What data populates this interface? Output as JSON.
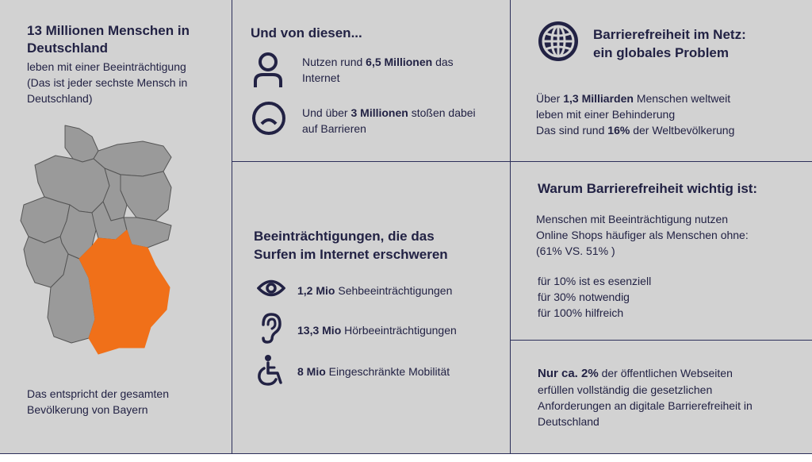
{
  "col1": {
    "heading_line1": "13 Millionen Menschen in",
    "heading_line2": "Deutschland",
    "sub_line1": "leben mit einer Beeinträchtigung",
    "sub_line2": "(Das ist jeder sechste Mensch in",
    "sub_line3": "Deutschland)",
    "footer_line1": "Das entspricht der gesamten",
    "footer_line2": "Bevölkerung von Bayern",
    "map_highlight_color": "#f07019",
    "map_color": "#9a9a9a"
  },
  "col2_top": {
    "heading": "Und von diesen...",
    "item1_pre": "Nutzen rund ",
    "item1_bold": "6,5 Millionen",
    "item1_post": " das",
    "item1_line2": "Internet",
    "item2_pre": "Und über ",
    "item2_bold": "3 Millionen",
    "item2_post": " stoßen dabei",
    "item2_line2": "auf Barrieren"
  },
  "col2_bottom": {
    "heading_line1": "Beeinträchtigungen, die das",
    "heading_line2": "Surfen im Internet erschweren",
    "items": [
      {
        "bold": "1,2 Mio",
        "label": " Sehbeeinträchtigungen",
        "icon": "eye-icon"
      },
      {
        "bold": "13,3 Mio",
        "label": " Hörbeeinträchtigungen",
        "icon": "ear-icon"
      },
      {
        "bold": "8 Mio",
        "label": " Eingeschränkte Mobilität",
        "icon": "wheelchair-icon"
      }
    ]
  },
  "col3_top": {
    "heading_line1": "Barrierefreiheit im Netz:",
    "heading_line2": "ein globales Problem",
    "line1_pre": "Über ",
    "line1_bold": "1,3 Milliarden",
    "line1_post": " Menschen weltweit",
    "line2": "leben mit einer Behinderung",
    "line3_pre": "Das sind rund ",
    "line3_bold": "16%",
    "line3_post": " der Weltbevölkerung"
  },
  "col3_mid": {
    "heading": "Warum Barrierefreiheit wichtig ist:",
    "p_line1": "Menschen mit Beeinträchtigung nutzen",
    "p_line2": "Online Shops häufiger als Menschen ohne:",
    "p_line3": "(61% VS. 51% )",
    "list": [
      "für 10% ist es esenziell",
      "für 30% notwendig",
      "für 100% hilfreich"
    ]
  },
  "col3_bottom": {
    "line1_bold": "Nur ca. 2%",
    "line1_post": " der öffentlichen Webseiten",
    "line2": "erfüllen vollständig die gesetzlichen",
    "line3": "Anforderungen an digitale Barrierefreiheit in",
    "line4": "Deutschland"
  },
  "colors": {
    "panel": "#d2d2d2",
    "navy": "#222244",
    "orange": "#f07019"
  }
}
